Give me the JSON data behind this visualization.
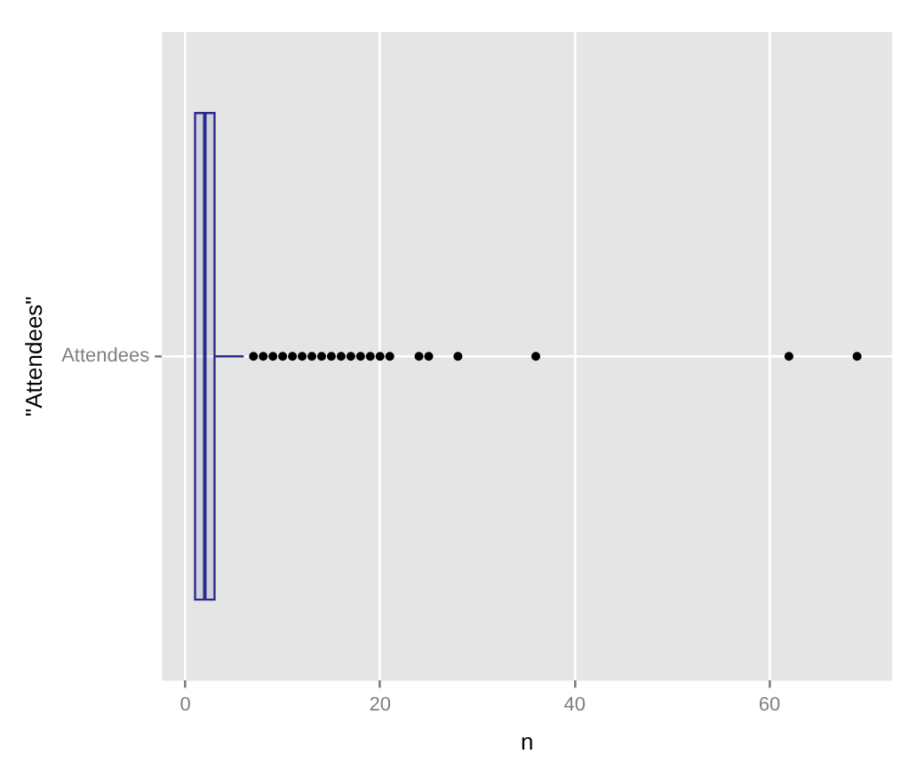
{
  "chart_data": {
    "type": "box",
    "orientation": "horizontal",
    "categories": [
      "Attendees"
    ],
    "boxes": [
      {
        "low": 1,
        "q1": 1,
        "median": 2,
        "q3": 3,
        "high": 6,
        "outliers": [
          7,
          8,
          9,
          10,
          11,
          12,
          13,
          14,
          15,
          16,
          17,
          18,
          19,
          20,
          21,
          24,
          25,
          28,
          36,
          62,
          69
        ]
      }
    ],
    "color": "#2b2b8c",
    "xlabel": "n",
    "ylabel": "\"Attendees\"",
    "xlim": [
      -2.4,
      72.6
    ],
    "xticks": [
      0,
      20,
      40,
      60
    ],
    "grid": true,
    "legend": false
  }
}
